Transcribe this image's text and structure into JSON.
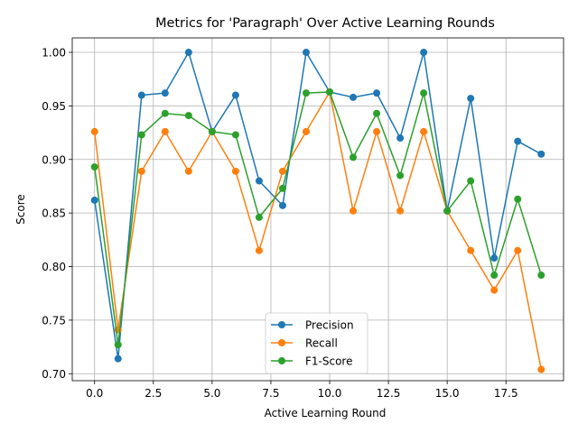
{
  "chart_data": {
    "type": "line",
    "title": "Metrics for 'Paragraph' Over Active Learning Rounds",
    "xlabel": "Active Learning Round",
    "ylabel": "Score",
    "xlim": [
      -0.95,
      19.95
    ],
    "ylim": [
      0.6935,
      1.0135
    ],
    "xticks": [
      0.0,
      2.5,
      5.0,
      7.5,
      10.0,
      12.5,
      15.0,
      17.5
    ],
    "xtick_labels": [
      "0.0",
      "2.5",
      "5.0",
      "7.5",
      "10.0",
      "12.5",
      "15.0",
      "17.5"
    ],
    "yticks": [
      0.7,
      0.75,
      0.8,
      0.85,
      0.9,
      0.95,
      1.0
    ],
    "ytick_labels": [
      "0.70",
      "0.75",
      "0.80",
      "0.85",
      "0.90",
      "0.95",
      "1.00"
    ],
    "grid": true,
    "legend_position": "bottom-center",
    "x": [
      0,
      1,
      2,
      3,
      4,
      5,
      6,
      7,
      8,
      9,
      10,
      11,
      12,
      13,
      14,
      15,
      16,
      17,
      18,
      19
    ],
    "series": [
      {
        "name": "Precision",
        "color": "#1f77b4",
        "values": [
          0.862,
          0.714,
          0.96,
          0.962,
          1.0,
          0.926,
          0.96,
          0.88,
          0.857,
          1.0,
          0.963,
          0.958,
          0.962,
          0.92,
          1.0,
          0.852,
          0.957,
          0.808,
          0.917,
          0.905
        ]
      },
      {
        "name": "Recall",
        "color": "#ff7f0e",
        "values": [
          0.926,
          0.741,
          0.889,
          0.926,
          0.889,
          0.926,
          0.889,
          0.815,
          0.889,
          0.926,
          0.963,
          0.852,
          0.926,
          0.852,
          0.926,
          0.852,
          0.815,
          0.778,
          0.815,
          0.704
        ]
      },
      {
        "name": "F1-Score",
        "color": "#2ca02c",
        "values": [
          0.893,
          0.727,
          0.923,
          0.943,
          0.941,
          0.926,
          0.923,
          0.846,
          0.873,
          0.962,
          0.963,
          0.902,
          0.943,
          0.885,
          0.962,
          0.852,
          0.88,
          0.792,
          0.863,
          0.792
        ]
      }
    ]
  }
}
